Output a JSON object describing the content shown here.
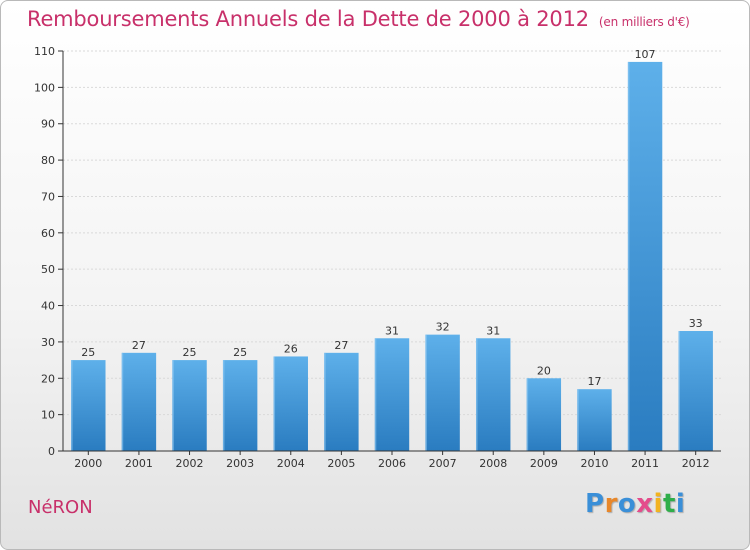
{
  "header": {
    "title": "Remboursements Annuels de la Dette de 2000 à 2012",
    "subtitle": "(en milliers d'€)"
  },
  "footer": {
    "commune": "NéRON",
    "logo": [
      "P",
      "r",
      "o",
      "x",
      "i",
      "t",
      "i"
    ]
  },
  "colors": {
    "title": "#c8306a",
    "bar_top": "#5eb0ea",
    "bar_bottom": "#2a7cc0",
    "grid": "#d9d9d9",
    "axis": "#333333"
  },
  "chart_data": {
    "type": "bar",
    "title": "Remboursements Annuels de la Dette de 2000 à 2012",
    "subtitle": "(en milliers d'€)",
    "categories": [
      "2000",
      "2001",
      "2002",
      "2003",
      "2004",
      "2005",
      "2006",
      "2007",
      "2008",
      "2009",
      "2010",
      "2011",
      "2012"
    ],
    "values": [
      25,
      27,
      25,
      25,
      26,
      27,
      31,
      32,
      31,
      20,
      17,
      107,
      33
    ],
    "ylim": [
      0,
      110
    ],
    "yticks": [
      0,
      10,
      20,
      30,
      40,
      50,
      60,
      70,
      80,
      90,
      100,
      110
    ],
    "grid": true,
    "data_labels": true
  }
}
